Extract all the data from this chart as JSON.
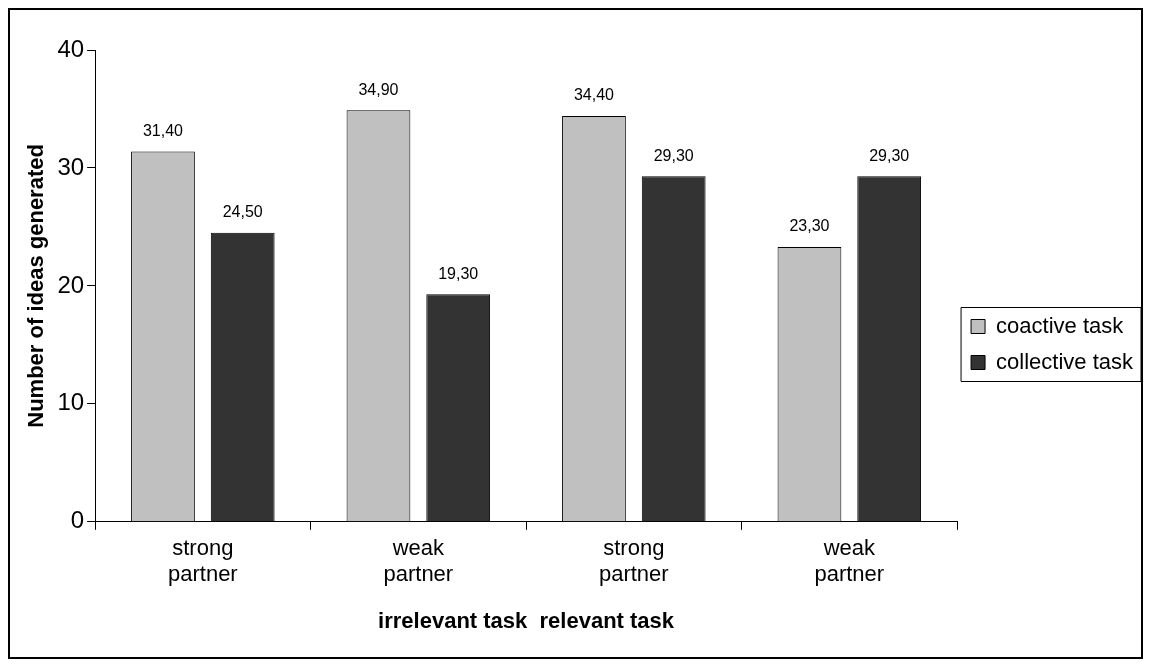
{
  "chart_data": {
    "type": "bar",
    "categories": [
      "strong partner",
      "weak partner",
      "strong partner",
      "weak partner"
    ],
    "series": [
      {
        "name": "coactive task",
        "color": "#c0c0c0",
        "values": [
          31.4,
          34.9,
          34.4,
          23.3
        ],
        "value_labels": [
          "31,40",
          "34,90",
          "34,40",
          "23,30"
        ]
      },
      {
        "name": "collective task",
        "color": "#333333",
        "values": [
          24.5,
          19.3,
          29.3,
          29.3
        ],
        "value_labels": [
          "24,50",
          "19,30",
          "29,30",
          "29,30"
        ]
      }
    ],
    "ylabel": "Number of ideas generated",
    "xlabel": "irrelevant task  relevant task",
    "ylim": [
      0,
      40
    ],
    "yticks": [
      0,
      10,
      20,
      30,
      40
    ],
    "grid": false,
    "legend": "right"
  }
}
